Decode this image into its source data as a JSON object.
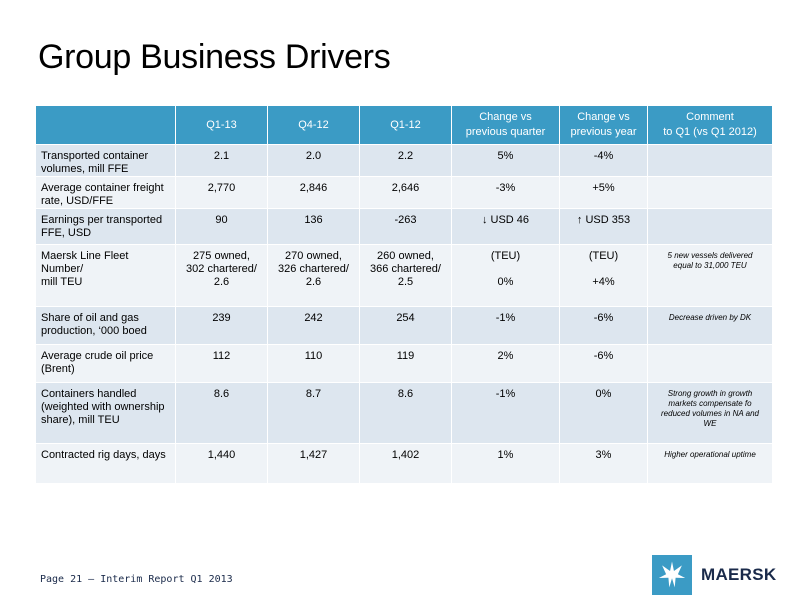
{
  "title": "Group Business Drivers",
  "table": {
    "headers": [
      "",
      "Q1-13",
      "Q4-12",
      "Q1-12",
      "Change vs\nprevious quarter",
      "Change vs\nprevious year",
      "Comment\nto Q1 (vs Q1 2012)"
    ],
    "rows": [
      {
        "label": "Transported  container\nvolumes, mill FFE",
        "q1_13": "2.1",
        "q4_12": "2.0",
        "q1_12": "2.2",
        "chg_q": "5%",
        "chg_y": "-4%",
        "comment": ""
      },
      {
        "label": "Average container freight\nrate, USD/FFE",
        "q1_13": "2,770",
        "q4_12": "2,846",
        "q1_12": "2,646",
        "chg_q": "-3%",
        "chg_y": "+5%",
        "comment": ""
      },
      {
        "label": "Earnings per transported\nFFE, USD",
        "q1_13": "90",
        "q4_12": "136",
        "q1_12": "-263",
        "chg_q": "↓ USD 46",
        "chg_y": "↑ USD 353",
        "comment": ""
      },
      {
        "label": "Maersk Line Fleet\nNumber/\nmill TEU",
        "q1_13": "275 owned,\n302 chartered/\n2.6",
        "q4_12": "270 owned,\n326 chartered/\n2.6",
        "q1_12": "260 owned,\n366 chartered/\n2.5",
        "chg_q": "(TEU)\n\n0%",
        "chg_y": "(TEU)\n\n+4%",
        "comment": "5 new vessels delivered\nequal to 31,000 TEU"
      },
      {
        "label": "Share of oil and gas\nproduction, ‘000 boed",
        "q1_13": "239",
        "q4_12": "242",
        "q1_12": "254",
        "chg_q": "-1%",
        "chg_y": "-6%",
        "comment": "Decrease driven by DK"
      },
      {
        "label": "Average crude oil price\n(Brent)",
        "q1_13": "112",
        "q4_12": "110",
        "q1_12": "119",
        "chg_q": "2%",
        "chg_y": "-6%",
        "comment": ""
      },
      {
        "label": "Containers handled\n(weighted with ownership\nshare), mill TEU",
        "q1_13": "8.6",
        "q4_12": "8.7",
        "q1_12": "8.6",
        "chg_q": "-1%",
        "chg_y": "0%",
        "comment": "Strong growth in growth\nmarkets compensate fo\nreduced volumes in NA and\nWE"
      },
      {
        "label": "Contracted rig days, days",
        "q1_13": "1,440",
        "q4_12": "1,427",
        "q1_12": "1,402",
        "chg_q": "1%",
        "chg_y": "3%",
        "comment": "Higher operational uptime"
      }
    ]
  },
  "footer": "Page 21 – Interim Report Q1 2013",
  "logo": {
    "text": "MAERSK",
    "icon": "seven-pointed-star-icon"
  },
  "colors": {
    "header_bg": "#3b9bc5",
    "row_odd": "#dde6ef",
    "row_even": "#eff3f7",
    "logo_blue": "#3b9bc5"
  }
}
